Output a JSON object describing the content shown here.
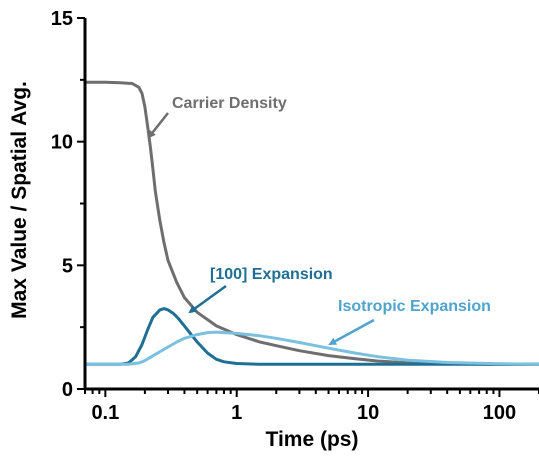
{
  "chart_data": {
    "type": "line",
    "title": "",
    "xlabel": "Time (ps)",
    "ylabel": "Max Value / Spatial Avg.",
    "x_scale": "log",
    "xlim": [
      0.07,
      200
    ],
    "ylim": [
      0,
      15
    ],
    "x_ticks": [
      {
        "value": 0.1,
        "label": "0.1"
      },
      {
        "value": 1,
        "label": "1"
      },
      {
        "value": 10,
        "label": "10"
      },
      {
        "value": 100,
        "label": "100"
      }
    ],
    "y_ticks": [
      {
        "value": 0,
        "label": "0"
      },
      {
        "value": 5,
        "label": "5"
      },
      {
        "value": 10,
        "label": "10"
      },
      {
        "value": 15,
        "label": "15"
      }
    ],
    "grid": false,
    "legend": "none",
    "series": [
      {
        "name": "Carrier Density",
        "color": "#6e6e6e",
        "x": [
          0.07,
          0.1,
          0.13,
          0.16,
          0.18,
          0.19,
          0.2,
          0.21,
          0.22,
          0.23,
          0.24,
          0.26,
          0.28,
          0.3,
          0.35,
          0.4,
          0.5,
          0.7,
          1,
          1.5,
          2,
          3,
          5,
          8,
          12,
          20,
          40,
          80,
          200
        ],
        "y": [
          12.4,
          12.4,
          12.38,
          12.35,
          12.2,
          11.95,
          11.4,
          10.6,
          9.8,
          8.9,
          8.0,
          6.8,
          5.9,
          5.2,
          4.3,
          3.7,
          3.1,
          2.55,
          2.2,
          1.9,
          1.75,
          1.55,
          1.35,
          1.22,
          1.13,
          1.06,
          1.02,
          1.0,
          1.0
        ]
      },
      {
        "name": "[100] Expansion",
        "color": "#1f6e94",
        "x": [
          0.07,
          0.1,
          0.13,
          0.15,
          0.17,
          0.19,
          0.21,
          0.23,
          0.26,
          0.28,
          0.3,
          0.33,
          0.36,
          0.4,
          0.45,
          0.5,
          0.6,
          0.7,
          0.8,
          1,
          1.5,
          3,
          10,
          200
        ],
        "y": [
          1.0,
          1.0,
          1.0,
          1.05,
          1.3,
          1.8,
          2.4,
          2.9,
          3.2,
          3.25,
          3.2,
          3.05,
          2.85,
          2.55,
          2.2,
          1.9,
          1.45,
          1.2,
          1.1,
          1.03,
          1.0,
          1.0,
          1.0,
          1.0
        ]
      },
      {
        "name": "Isotropic Expansion",
        "color": "#7cc0e0",
        "x": [
          0.07,
          0.1,
          0.15,
          0.18,
          0.2,
          0.25,
          0.3,
          0.35,
          0.4,
          0.5,
          0.6,
          0.7,
          0.8,
          1,
          1.5,
          2,
          3,
          5,
          8,
          12,
          20,
          40,
          100,
          200
        ],
        "y": [
          1.0,
          1.0,
          1.0,
          1.05,
          1.15,
          1.45,
          1.7,
          1.9,
          2.05,
          2.2,
          2.28,
          2.3,
          2.28,
          2.25,
          2.15,
          2.05,
          1.88,
          1.65,
          1.45,
          1.3,
          1.17,
          1.07,
          1.02,
          1.0
        ]
      }
    ],
    "annotations": [
      {
        "text": "Carrier Density",
        "color": "#6e6e6e",
        "series": 0
      },
      {
        "text": "[100] Expansion",
        "color": "#1f6e94",
        "series": 1
      },
      {
        "text": "Isotropic Expansion",
        "color": "#4fa3cc",
        "series": 2
      }
    ]
  }
}
